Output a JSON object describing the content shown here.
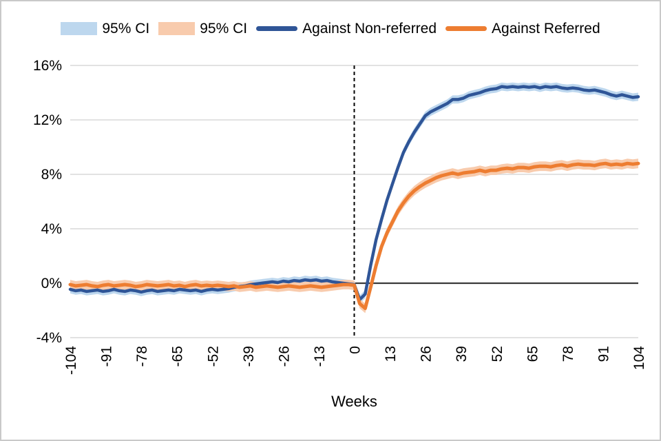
{
  "figure": {
    "background": "#ffffff",
    "border_color": "#c9c9c9"
  },
  "legend": {
    "items": [
      {
        "label": "95% CI",
        "type": "band",
        "color": "#BDD7EE"
      },
      {
        "label": "95% CI",
        "type": "band",
        "color": "#F8CBAD"
      },
      {
        "label": "Against Non-referred",
        "type": "line",
        "color": "#2F5597"
      },
      {
        "label": "Against Referred",
        "type": "line",
        "color": "#ED7D31"
      }
    ]
  },
  "chart_data": {
    "type": "line",
    "title": "",
    "xlabel": "Weeks",
    "ylabel": "",
    "xlim": [
      -104,
      104
    ],
    "ylim": [
      -4,
      16
    ],
    "grid": true,
    "gridline_color": "#d9d9d9",
    "zero_line_color": "#3a3a3a",
    "event_line": {
      "x": 0,
      "style": "dashed",
      "color": "#000000"
    },
    "x_ticks": [
      -104,
      -91,
      -78,
      -65,
      -52,
      -39,
      -26,
      -13,
      0,
      13,
      26,
      39,
      52,
      65,
      78,
      91,
      104
    ],
    "y_ticks": [
      {
        "v": 16,
        "label": "16%"
      },
      {
        "v": 12,
        "label": "12%"
      },
      {
        "v": 8,
        "label": "8%"
      },
      {
        "v": 4,
        "label": "4%"
      },
      {
        "v": 0,
        "label": "0%"
      },
      {
        "v": -4,
        "label": "-4%"
      }
    ],
    "x_start": -104,
    "x_step": 2,
    "series": [
      {
        "name": "Against Non-referred",
        "color": "#2F5597",
        "ci_color": "#BDD7EE",
        "ci_halfwidth": 0.3,
        "line_width": 4.5,
        "values": [
          -0.45,
          -0.55,
          -0.5,
          -0.6,
          -0.55,
          -0.5,
          -0.6,
          -0.55,
          -0.45,
          -0.55,
          -0.6,
          -0.5,
          -0.55,
          -0.65,
          -0.55,
          -0.5,
          -0.6,
          -0.55,
          -0.5,
          -0.55,
          -0.45,
          -0.5,
          -0.55,
          -0.5,
          -0.6,
          -0.5,
          -0.45,
          -0.5,
          -0.45,
          -0.4,
          -0.3,
          -0.25,
          -0.2,
          -0.1,
          -0.05,
          0.0,
          0.05,
          0.1,
          0.05,
          0.15,
          0.1,
          0.2,
          0.15,
          0.25,
          0.2,
          0.25,
          0.15,
          0.2,
          0.1,
          0.05,
          0.0,
          -0.05,
          -0.1,
          -1.2,
          -0.8,
          1.3,
          3.2,
          4.7,
          6.1,
          7.3,
          8.5,
          9.6,
          10.4,
          11.1,
          11.7,
          12.3,
          12.6,
          12.8,
          13.0,
          13.2,
          13.5,
          13.5,
          13.6,
          13.8,
          13.9,
          14.0,
          14.15,
          14.25,
          14.3,
          14.45,
          14.4,
          14.45,
          14.4,
          14.45,
          14.4,
          14.45,
          14.35,
          14.45,
          14.4,
          14.45,
          14.35,
          14.3,
          14.35,
          14.3,
          14.2,
          14.15,
          14.2,
          14.1,
          14.0,
          13.85,
          13.75,
          13.85,
          13.75,
          13.65,
          13.7
        ]
      },
      {
        "name": "Against Referred",
        "color": "#ED7D31",
        "ci_color": "#F8CBAD",
        "ci_halfwidth": 0.35,
        "line_width": 5,
        "values": [
          -0.1,
          -0.2,
          -0.15,
          -0.1,
          -0.2,
          -0.25,
          -0.15,
          -0.1,
          -0.2,
          -0.15,
          -0.1,
          -0.15,
          -0.25,
          -0.2,
          -0.1,
          -0.15,
          -0.2,
          -0.15,
          -0.1,
          -0.2,
          -0.15,
          -0.25,
          -0.15,
          -0.1,
          -0.2,
          -0.15,
          -0.2,
          -0.15,
          -0.2,
          -0.25,
          -0.2,
          -0.3,
          -0.25,
          -0.2,
          -0.3,
          -0.25,
          -0.2,
          -0.25,
          -0.3,
          -0.25,
          -0.2,
          -0.25,
          -0.3,
          -0.25,
          -0.2,
          -0.25,
          -0.3,
          -0.25,
          -0.2,
          -0.15,
          -0.1,
          -0.1,
          -0.15,
          -1.5,
          -1.85,
          -0.3,
          1.3,
          2.7,
          3.7,
          4.5,
          5.3,
          5.9,
          6.4,
          6.8,
          7.1,
          7.35,
          7.55,
          7.75,
          7.9,
          8.0,
          8.1,
          8.0,
          8.1,
          8.15,
          8.2,
          8.3,
          8.2,
          8.3,
          8.3,
          8.4,
          8.45,
          8.4,
          8.5,
          8.5,
          8.45,
          8.55,
          8.6,
          8.6,
          8.55,
          8.65,
          8.7,
          8.6,
          8.7,
          8.75,
          8.7,
          8.7,
          8.65,
          8.75,
          8.8,
          8.7,
          8.75,
          8.7,
          8.8,
          8.75,
          8.8
        ]
      }
    ]
  }
}
